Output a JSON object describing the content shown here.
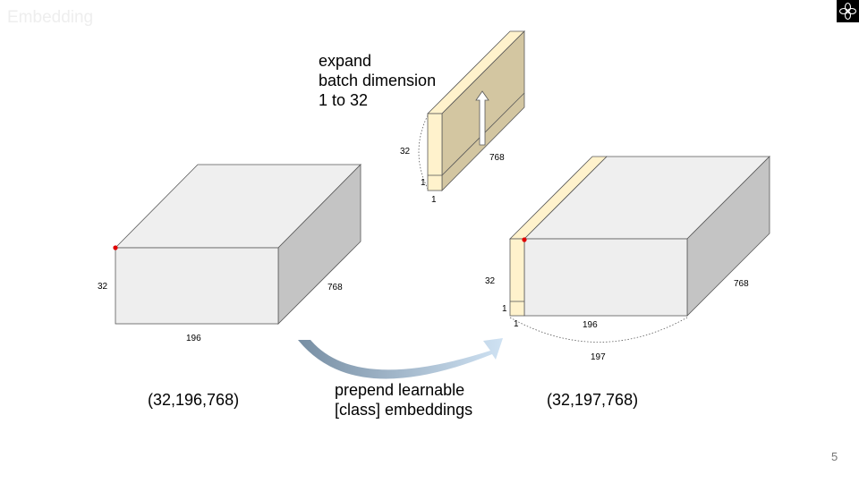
{
  "slide": {
    "title": "Embedding",
    "page_number": "5"
  },
  "left_tensor": {
    "dim_batch": "32",
    "dim_tokens": "196",
    "dim_embed": "768",
    "shape_label": "(32,196,768)"
  },
  "class_token": {
    "caption_line1": "expand",
    "caption_line2": "batch dimension",
    "caption_line3": "1 to 32",
    "dim_batch": "32",
    "dim_embed": "768",
    "dim_one_a": "1",
    "dim_one_b": "1"
  },
  "right_tensor": {
    "dim_batch": "32",
    "dim_one_a": "1",
    "dim_one_b": "1",
    "dim_tokens": "196",
    "dim_total": "197",
    "dim_embed": "768",
    "shape_label": "(32,197,768)"
  },
  "operation": {
    "line1": "prepend learnable",
    "line2": "[class] embeddings"
  },
  "colors": {
    "box_front": "#eeeeee",
    "box_top": "#efefef",
    "box_side": "#c4c4c4",
    "token_front": "#fff2cc",
    "token_side": "#d3c6a1",
    "marker": "#e00000",
    "arrow_dark": "#778ea3",
    "arrow_light": "#cfe2f3"
  }
}
